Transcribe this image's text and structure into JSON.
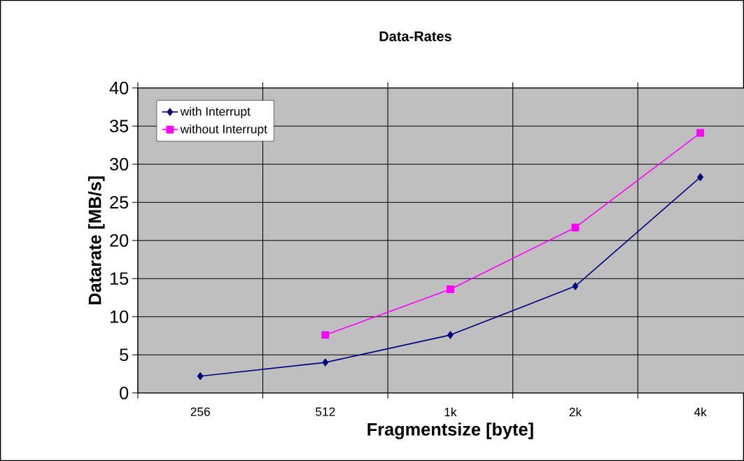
{
  "chart_data": {
    "type": "line",
    "title": "Data-Rates",
    "xlabel": "Fragmentsize [byte]",
    "ylabel": "Datarate [MB/s]",
    "categories": [
      "256",
      "512",
      "1k",
      "2k",
      "4k"
    ],
    "series": [
      {
        "name": "with Interrupt",
        "color": "#000080",
        "marker": "diamond",
        "values": [
          2.2,
          4.0,
          7.6,
          14.0,
          28.3
        ]
      },
      {
        "name": "without Interrupt",
        "color": "#ff00ff",
        "marker": "square",
        "values": [
          null,
          7.6,
          13.6,
          21.7,
          34.1
        ]
      }
    ],
    "ylim": [
      0,
      40
    ],
    "yticks": [
      0,
      5,
      10,
      15,
      20,
      25,
      30,
      35,
      40
    ],
    "grid": true,
    "legend": "top left",
    "line_style": "solid"
  }
}
